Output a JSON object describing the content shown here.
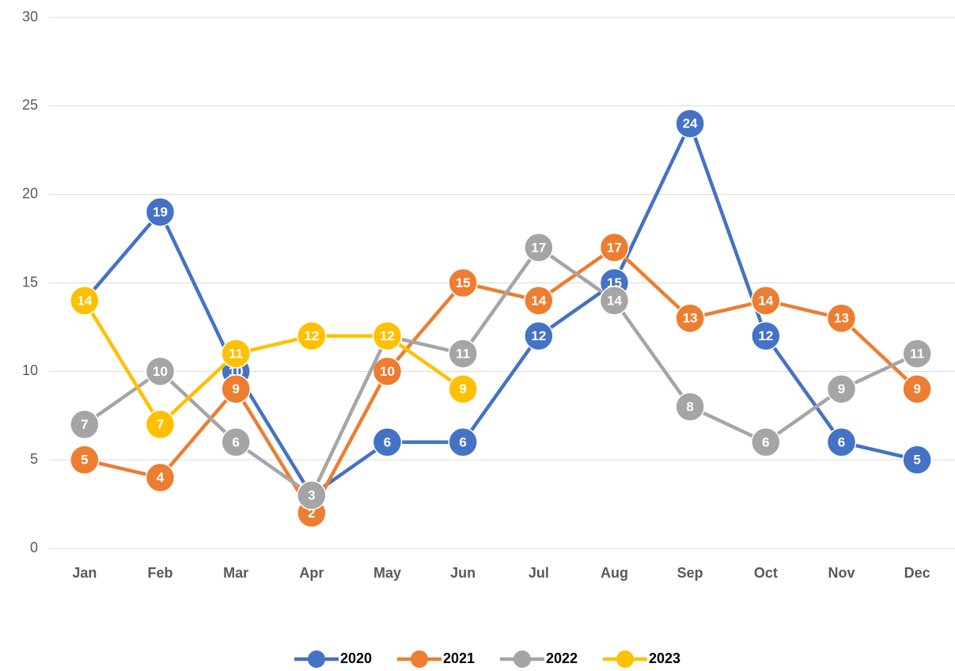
{
  "chart_data": {
    "type": "line",
    "categories": [
      "Jan",
      "Feb",
      "Mar",
      "Apr",
      "May",
      "Jun",
      "Jul",
      "Aug",
      "Sep",
      "Oct",
      "Nov",
      "Dec"
    ],
    "series": [
      {
        "name": "2020",
        "color": "#4472c4",
        "values": [
          14,
          19,
          10,
          3,
          6,
          6,
          12,
          15,
          24,
          12,
          6,
          5
        ]
      },
      {
        "name": "2021",
        "color": "#ed7d31",
        "values": [
          5,
          4,
          9,
          2,
          10,
          15,
          14,
          17,
          13,
          14,
          13,
          9
        ]
      },
      {
        "name": "2022",
        "color": "#a5a5a5",
        "values": [
          7,
          10,
          6,
          3,
          12,
          11,
          17,
          14,
          8,
          6,
          9,
          11
        ]
      },
      {
        "name": "2023",
        "color": "#ffc000",
        "values": [
          14,
          7,
          11,
          12,
          12,
          9,
          null,
          null,
          null,
          null,
          null,
          null
        ]
      }
    ],
    "ylim": [
      0,
      30
    ],
    "yticks": [
      0,
      5,
      10,
      15,
      20,
      25,
      30
    ],
    "grid": true,
    "legend": "bottom"
  }
}
